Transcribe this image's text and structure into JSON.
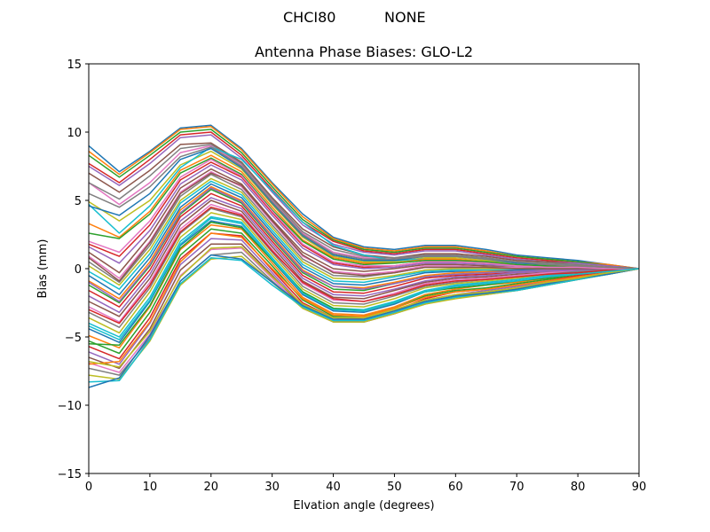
{
  "figure": {
    "header_left": "CHCI80",
    "header_right": "NONE"
  },
  "chart_data": {
    "type": "line",
    "title": "Antenna Phase Biases: GLO-L2",
    "xlabel": "Elvation angle (degrees)",
    "ylabel": "Bias (mm)",
    "xlim": [
      0,
      90
    ],
    "ylim": [
      -15,
      15
    ],
    "xticks": [
      0,
      10,
      20,
      30,
      40,
      50,
      60,
      70,
      80,
      90
    ],
    "yticks": [
      -15,
      -10,
      -5,
      0,
      5,
      10,
      15
    ],
    "ytick_labels": [
      "−15",
      "−10",
      "−5",
      "0",
      "5",
      "10",
      "15"
    ],
    "grid": false,
    "legend": "none",
    "x": [
      0,
      5,
      10,
      15,
      20,
      25,
      30,
      35,
      40,
      45,
      50,
      55,
      60,
      65,
      70,
      75,
      80,
      85,
      90
    ],
    "color_cycle": [
      "#1f77b4",
      "#ff7f0e",
      "#2ca02c",
      "#d62728",
      "#9467bd",
      "#8c564b",
      "#e377c2",
      "#7f7f7f",
      "#bcbd22",
      "#17becf"
    ],
    "series": [
      {
        "values": [
          9.0,
          7.1,
          8.6,
          10.3,
          10.5,
          8.8,
          6.3,
          4.0,
          2.3,
          1.6,
          1.4,
          1.7,
          1.7,
          1.4,
          1.0,
          0.8,
          0.6,
          0.3,
          0.0
        ]
      },
      {
        "values": [
          8.6,
          6.9,
          8.5,
          10.2,
          10.4,
          8.7,
          6.2,
          3.8,
          2.2,
          1.5,
          1.3,
          1.6,
          1.6,
          1.3,
          0.9,
          0.7,
          0.5,
          0.3,
          0.0
        ]
      },
      {
        "values": [
          8.3,
          6.7,
          8.3,
          10.0,
          10.2,
          8.5,
          6.0,
          3.6,
          2.1,
          1.4,
          1.2,
          1.5,
          1.5,
          1.2,
          0.9,
          0.7,
          0.5,
          0.2,
          0.0
        ]
      },
      {
        "values": [
          7.7,
          6.3,
          8.0,
          9.8,
          10.0,
          8.3,
          5.8,
          3.4,
          2.0,
          1.3,
          1.1,
          1.4,
          1.4,
          1.1,
          0.8,
          0.6,
          0.4,
          0.2,
          0.0
        ]
      },
      {
        "values": [
          7.5,
          6.1,
          7.7,
          9.6,
          9.8,
          8.1,
          5.6,
          3.2,
          1.8,
          1.2,
          1.0,
          1.3,
          1.3,
          1.0,
          0.7,
          0.5,
          0.4,
          0.2,
          0.0
        ]
      },
      {
        "values": [
          7.0,
          5.6,
          7.2,
          9.1,
          9.2,
          7.8,
          5.2,
          2.9,
          1.6,
          1.0,
          0.8,
          1.1,
          1.1,
          0.9,
          0.6,
          0.5,
          0.3,
          0.1,
          0.0
        ]
      },
      {
        "values": [
          6.3,
          4.7,
          6.3,
          8.5,
          9.0,
          7.6,
          5.0,
          2.6,
          1.2,
          0.8,
          0.7,
          1.0,
          0.9,
          0.7,
          0.5,
          0.4,
          0.3,
          0.1,
          0.0
        ]
      },
      {
        "values": [
          6.3,
          5.1,
          6.8,
          8.8,
          9.1,
          7.7,
          5.1,
          2.7,
          1.4,
          0.9,
          0.8,
          1.0,
          1.0,
          0.8,
          0.5,
          0.4,
          0.3,
          0.1,
          0.0
        ]
      },
      {
        "values": [
          4.9,
          3.5,
          5.0,
          7.6,
          8.6,
          7.3,
          4.7,
          2.3,
          0.9,
          0.5,
          0.5,
          0.8,
          0.8,
          0.6,
          0.4,
          0.3,
          0.2,
          0.1,
          0.0
        ]
      },
      {
        "values": [
          4.7,
          2.6,
          4.6,
          7.4,
          8.9,
          8.0,
          5.7,
          3.4,
          1.7,
          1.0,
          0.6,
          0.7,
          0.6,
          0.5,
          0.3,
          0.2,
          0.1,
          0.1,
          0.0
        ]
      },
      {
        "values": [
          4.6,
          3.9,
          5.5,
          8.0,
          8.8,
          7.4,
          4.8,
          2.4,
          1.0,
          0.6,
          0.6,
          0.9,
          0.9,
          0.7,
          0.4,
          0.3,
          0.2,
          0.1,
          0.0
        ]
      },
      {
        "values": [
          3.3,
          2.3,
          4.2,
          7.2,
          8.3,
          7.1,
          4.5,
          2.1,
          0.8,
          0.4,
          0.4,
          0.7,
          0.7,
          0.5,
          0.3,
          0.2,
          0.2,
          0.1,
          0.0
        ]
      },
      {
        "values": [
          2.6,
          2.2,
          4.0,
          7.0,
          8.1,
          6.9,
          4.3,
          2.0,
          0.7,
          0.3,
          0.4,
          0.6,
          0.6,
          0.5,
          0.3,
          0.2,
          0.1,
          0.1,
          0.0
        ]
      },
      {
        "values": [
          1.8,
          0.9,
          3.2,
          6.5,
          7.8,
          6.7,
          4.1,
          1.7,
          0.4,
          0.1,
          0.2,
          0.5,
          0.5,
          0.4,
          0.2,
          0.1,
          0.1,
          0.0,
          0.0
        ]
      },
      {
        "values": [
          1.6,
          0.4,
          2.8,
          6.2,
          7.6,
          6.5,
          3.9,
          1.5,
          0.3,
          0.0,
          0.1,
          0.4,
          0.4,
          0.3,
          0.2,
          0.1,
          0.1,
          0.0,
          0.0
        ]
      },
      {
        "values": [
          1.2,
          -0.3,
          2.4,
          5.9,
          7.3,
          6.2,
          3.6,
          1.2,
          0.0,
          -0.2,
          0.0,
          0.3,
          0.3,
          0.2,
          0.1,
          0.1,
          0.0,
          0.0,
          0.0
        ]
      },
      {
        "values": [
          0.9,
          -0.7,
          2.0,
          5.6,
          7.1,
          6.0,
          3.4,
          0.9,
          -0.2,
          -0.4,
          -0.2,
          0.2,
          0.2,
          0.1,
          0.1,
          0.0,
          0.0,
          0.0,
          0.0
        ]
      },
      {
        "values": [
          0.5,
          -1.0,
          1.7,
          5.3,
          6.9,
          5.8,
          3.2,
          0.7,
          -0.5,
          -0.6,
          -0.3,
          0.1,
          0.1,
          0.1,
          0.0,
          0.0,
          0.0,
          0.0,
          0.0
        ]
      },
      {
        "values": [
          0.2,
          -1.2,
          1.4,
          5.0,
          6.6,
          5.6,
          3.0,
          0.5,
          -0.7,
          -0.8,
          -0.5,
          -0.1,
          0.0,
          0.0,
          0.0,
          0.0,
          0.0,
          0.0,
          0.0
        ]
      },
      {
        "values": [
          -0.2,
          -1.5,
          1.1,
          4.8,
          6.4,
          5.4,
          2.8,
          0.3,
          -0.9,
          -1.0,
          -0.6,
          -0.2,
          -0.1,
          -0.1,
          -0.1,
          0.0,
          0.0,
          0.0,
          0.0
        ]
      },
      {
        "values": [
          -0.5,
          -1.9,
          0.8,
          4.5,
          6.2,
          5.2,
          2.6,
          0.1,
          -1.1,
          -1.2,
          -0.8,
          -0.3,
          -0.2,
          -0.2,
          -0.1,
          -0.1,
          0.0,
          0.0,
          0.0
        ]
      },
      {
        "values": [
          -0.9,
          -2.2,
          0.5,
          4.3,
          6.0,
          5.0,
          2.4,
          -0.1,
          -1.3,
          -1.4,
          -1.0,
          -0.5,
          -0.3,
          -0.2,
          -0.2,
          -0.1,
          -0.1,
          0.0,
          0.0
        ]
      },
      {
        "values": [
          -1.2,
          -2.5,
          0.2,
          4.0,
          5.8,
          4.8,
          2.2,
          -0.3,
          -1.5,
          -1.6,
          -1.1,
          -0.6,
          -0.4,
          -0.3,
          -0.2,
          -0.1,
          -0.1,
          0.0,
          0.0
        ]
      },
      {
        "values": [
          -1.6,
          -2.8,
          -0.1,
          3.8,
          5.5,
          4.6,
          2.0,
          -0.5,
          -1.7,
          -1.8,
          -1.3,
          -0.7,
          -0.5,
          -0.4,
          -0.3,
          -0.2,
          -0.1,
          0.0,
          0.0
        ]
      },
      {
        "values": [
          -2.0,
          -3.2,
          -0.4,
          3.5,
          5.2,
          4.4,
          1.8,
          -0.7,
          -1.9,
          -2.0,
          -1.5,
          -0.9,
          -0.6,
          -0.5,
          -0.3,
          -0.2,
          -0.1,
          -0.1,
          0.0
        ]
      },
      {
        "values": [
          -2.4,
          -3.5,
          -0.7,
          3.2,
          5.0,
          4.2,
          1.6,
          -0.9,
          -2.1,
          -2.2,
          -1.6,
          -1.0,
          -0.7,
          -0.6,
          -0.4,
          -0.3,
          -0.2,
          -0.1,
          0.0
        ]
      },
      {
        "values": [
          -2.8,
          -3.9,
          -1.0,
          2.9,
          4.7,
          4.0,
          1.4,
          -1.1,
          -2.3,
          -2.4,
          -1.8,
          -1.1,
          -0.8,
          -0.7,
          -0.5,
          -0.3,
          -0.2,
          -0.1,
          0.0
        ]
      },
      {
        "values": [
          -3.2,
          -4.3,
          -1.4,
          2.6,
          4.4,
          3.8,
          1.2,
          -1.3,
          -2.5,
          -2.6,
          -2.0,
          -1.3,
          -1.0,
          -0.8,
          -0.6,
          -0.4,
          -0.2,
          -0.1,
          0.0
        ]
      },
      {
        "values": [
          -3.6,
          -4.7,
          -1.7,
          2.3,
          4.1,
          3.6,
          1.0,
          -1.5,
          -2.7,
          -2.8,
          -2.2,
          -1.4,
          -1.1,
          -0.9,
          -0.7,
          -0.5,
          -0.3,
          -0.1,
          0.0
        ]
      },
      {
        "values": [
          -4.0,
          -5.0,
          -2.1,
          2.0,
          3.8,
          3.4,
          0.8,
          -1.7,
          -2.9,
          -3.0,
          -2.4,
          -1.6,
          -1.2,
          -1.0,
          -0.8,
          -0.5,
          -0.3,
          -0.1,
          0.0
        ]
      },
      {
        "values": [
          -4.4,
          -5.4,
          -2.4,
          1.7,
          3.5,
          3.1,
          0.6,
          -1.9,
          -3.1,
          -3.2,
          -2.6,
          -1.7,
          -1.3,
          -1.1,
          -0.9,
          -0.6,
          -0.4,
          -0.2,
          0.0
        ]
      },
      {
        "values": [
          -4.9,
          -5.8,
          -2.8,
          1.4,
          3.2,
          2.9,
          0.4,
          -2.1,
          -3.3,
          -3.4,
          -2.8,
          -1.9,
          -1.5,
          -1.2,
          -1.0,
          -0.7,
          -0.4,
          -0.2,
          0.0
        ]
      },
      {
        "values": [
          -5.3,
          -6.2,
          -3.2,
          1.0,
          2.9,
          2.6,
          0.2,
          -2.3,
          -3.5,
          -3.5,
          -2.9,
          -2.0,
          -1.6,
          -1.4,
          -1.1,
          -0.8,
          -0.5,
          -0.2,
          0.0
        ]
      },
      {
        "values": [
          -5.7,
          -6.6,
          -3.6,
          0.7,
          2.6,
          2.4,
          -0.1,
          -2.5,
          -3.6,
          -3.7,
          -3.1,
          -2.2,
          -1.7,
          -1.5,
          -1.2,
          -0.9,
          -0.5,
          -0.2,
          0.0
        ]
      },
      {
        "values": [
          -6.1,
          -7.0,
          -4.0,
          0.3,
          2.2,
          2.1,
          -0.3,
          -2.7,
          -3.8,
          -3.8,
          -3.2,
          -2.3,
          -1.9,
          -1.6,
          -1.3,
          -1.0,
          -0.6,
          -0.3,
          0.0
        ]
      },
      {
        "values": [
          -6.5,
          -7.3,
          -4.4,
          -0.1,
          1.8,
          1.8,
          -0.5,
          -2.8,
          -3.8,
          -3.9,
          -3.3,
          -2.5,
          -2.0,
          -1.7,
          -1.4,
          -1.1,
          -0.7,
          -0.3,
          0.0
        ]
      },
      {
        "values": [
          -6.9,
          -7.6,
          -4.8,
          -0.5,
          1.4,
          1.5,
          -0.7,
          -2.9,
          -3.9,
          -3.9,
          -3.3,
          -2.5,
          -2.1,
          -1.8,
          -1.5,
          -1.1,
          -0.7,
          -0.3,
          0.0
        ]
      },
      {
        "values": [
          -7.3,
          -7.8,
          -5.1,
          -0.9,
          1.0,
          1.2,
          -0.9,
          -2.9,
          -3.9,
          -3.9,
          -3.3,
          -2.6,
          -2.1,
          -1.9,
          -1.6,
          -1.2,
          -0.8,
          -0.4,
          0.0
        ]
      },
      {
        "values": [
          -7.8,
          -8.1,
          -5.3,
          -1.2,
          0.7,
          0.9,
          -1.0,
          -2.9,
          -3.9,
          -3.9,
          -3.3,
          -2.6,
          -2.2,
          -1.9,
          -1.6,
          -1.2,
          -0.8,
          -0.4,
          0.0
        ]
      },
      {
        "values": [
          -8.3,
          -8.2,
          -5.2,
          -1.1,
          0.8,
          0.6,
          -1.2,
          -2.8,
          -3.8,
          -3.8,
          -3.2,
          -2.5,
          -2.1,
          -1.8,
          -1.6,
          -1.2,
          -0.8,
          -0.4,
          0.0
        ]
      },
      {
        "values": [
          -8.7,
          -8.0,
          -4.9,
          -0.9,
          1.0,
          0.7,
          -1.0,
          -2.7,
          -3.7,
          -3.7,
          -3.1,
          -2.4,
          -2.0,
          -1.8,
          -1.5,
          -1.1,
          -0.7,
          -0.4,
          0.0
        ]
      },
      {
        "values": [
          -7.0,
          -6.8,
          -3.9,
          0.5,
          2.6,
          2.3,
          0.0,
          -2.2,
          -3.4,
          -3.5,
          -2.9,
          -2.1,
          -1.7,
          -1.5,
          -1.2,
          -0.9,
          -0.6,
          -0.3,
          0.0
        ]
      },
      {
        "values": [
          -5.5,
          -5.6,
          -2.7,
          1.5,
          3.4,
          3.0,
          0.6,
          -1.7,
          -2.9,
          -3.1,
          -2.5,
          -1.7,
          -1.4,
          -1.2,
          -0.9,
          -0.7,
          -0.4,
          -0.2,
          0.0
        ]
      },
      {
        "values": [
          -3.0,
          -4.0,
          -1.2,
          2.7,
          4.5,
          3.9,
          1.3,
          -1.0,
          -2.2,
          -2.4,
          -1.9,
          -1.2,
          -0.9,
          -0.8,
          -0.6,
          -0.4,
          -0.3,
          -0.1,
          0.0
        ]
      },
      {
        "values": [
          -1.0,
          -2.4,
          0.3,
          4.1,
          5.9,
          4.9,
          2.3,
          -0.2,
          -1.3,
          -1.5,
          -1.1,
          -0.6,
          -0.4,
          -0.3,
          -0.2,
          -0.1,
          -0.1,
          0.0,
          0.0
        ]
      },
      {
        "values": [
          0.8,
          -0.9,
          1.9,
          5.5,
          7.0,
          6.1,
          3.5,
          1.0,
          -0.3,
          -0.5,
          -0.3,
          0.1,
          0.1,
          0.1,
          0.0,
          0.0,
          0.0,
          0.0,
          0.0
        ]
      },
      {
        "values": [
          2.0,
          1.2,
          3.5,
          6.7,
          8.0,
          6.8,
          4.2,
          1.8,
          0.5,
          0.2,
          0.2,
          0.5,
          0.5,
          0.4,
          0.2,
          0.1,
          0.1,
          0.0,
          0.0
        ]
      },
      {
        "values": [
          5.5,
          4.5,
          6.0,
          8.2,
          8.9,
          7.5,
          4.9,
          2.5,
          1.1,
          0.7,
          0.7,
          0.9,
          0.9,
          0.7,
          0.5,
          0.3,
          0.2,
          0.1,
          0.0
        ]
      },
      {
        "values": [
          -6.8,
          -7.2,
          -4.6,
          -0.6,
          1.5,
          1.6,
          -0.6,
          -2.6,
          -3.6,
          -3.6,
          -3.0,
          -2.3,
          -1.9,
          -1.7,
          -1.4,
          -1.0,
          -0.7,
          -0.3,
          0.0
        ]
      },
      {
        "values": [
          -4.2,
          -5.2,
          -2.3,
          1.8,
          3.7,
          3.3,
          0.7,
          -1.8,
          -3.0,
          -3.1,
          -2.5,
          -1.7,
          -1.3,
          -1.1,
          -0.9,
          -0.6,
          -0.4,
          -0.2,
          0.0
        ]
      }
    ]
  }
}
